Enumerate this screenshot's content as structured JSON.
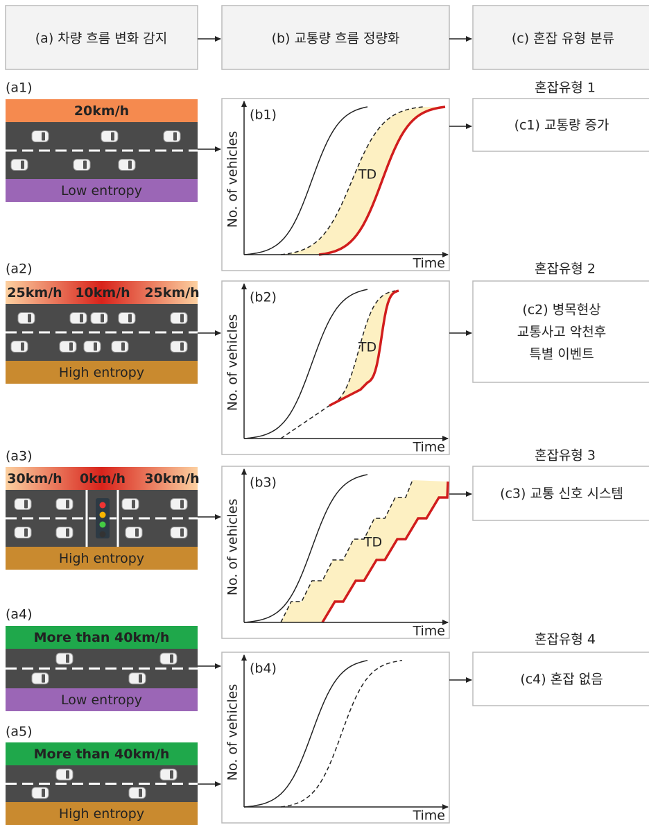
{
  "header": {
    "steps": [
      "(a) 차량 흐름 변화 감지",
      "(b) 교통량 흐름 정량화",
      "(c) 혼잡 유형 분류"
    ]
  },
  "plot_axes": {
    "y": "No. of vehicles",
    "x": "Time"
  },
  "rows": [
    {
      "road": {
        "label": "(a1)",
        "speeds": [
          "20km/h"
        ],
        "entropy": "Low entropy"
      },
      "plot": {
        "label": "(b1)",
        "annotation": "TD"
      },
      "type": {
        "heading": "혼잡유형 1",
        "lines": [
          "(c1) 교통량 증가"
        ]
      }
    },
    {
      "road": {
        "label": "(a2)",
        "speeds": [
          "25km/h",
          "10km/h",
          "25km/h"
        ],
        "entropy": "High entropy"
      },
      "plot": {
        "label": "(b2)",
        "annotation": "TD"
      },
      "type": {
        "heading": "혼잡유형 2",
        "lines": [
          "(c2) 병목현상",
          "교통사고 악천후",
          "특별 이벤트"
        ]
      }
    },
    {
      "road": {
        "label": "(a3)",
        "speeds": [
          "30km/h",
          "0km/h",
          "30km/h"
        ],
        "entropy": "High entropy"
      },
      "plot": {
        "label": "(b3)",
        "annotation": "TD"
      },
      "type": {
        "heading": "혼잡유형 3",
        "lines": [
          "(c3) 교통 신호 시스템"
        ]
      }
    },
    {
      "road": {
        "label": "(a4)",
        "speeds": [
          "More than 40km/h"
        ],
        "entropy": "Low entropy"
      },
      "plot": {
        "label": "(b4)"
      },
      "type": {
        "heading": "혼잡유형 4",
        "lines": [
          "(c4) 혼잡 없음"
        ]
      }
    },
    {
      "road": {
        "label": "(a5)",
        "speeds": [
          "More than 40km/h"
        ],
        "entropy": "High entropy"
      }
    }
  ]
}
